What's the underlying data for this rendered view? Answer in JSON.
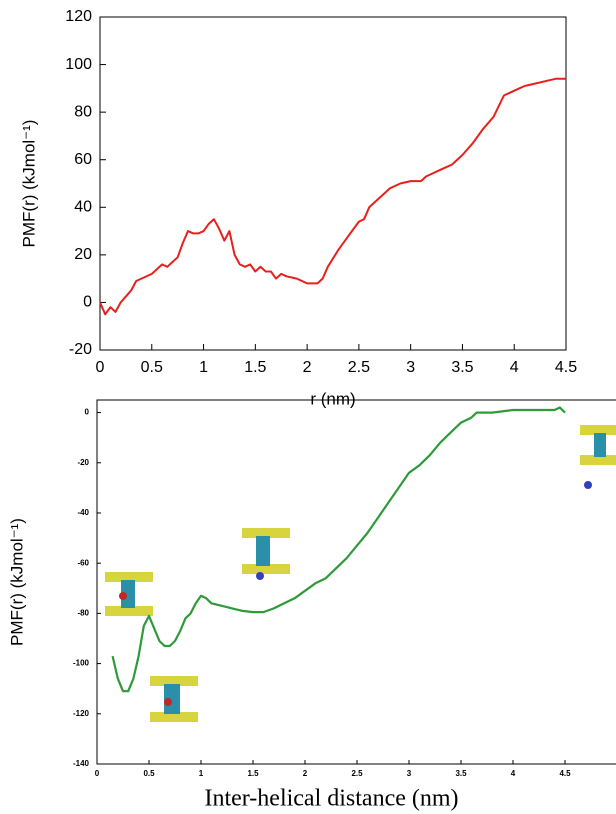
{
  "chart_data": [
    {
      "type": "line",
      "x_label": "r (nm)",
      "y_label": "PMF(r) (kJmol⁻¹)",
      "xlim": [
        0,
        4.5
      ],
      "ylim": [
        -20,
        120
      ],
      "xticks": [
        0,
        0.5,
        1,
        1.5,
        2,
        2.5,
        3,
        3.5,
        4,
        4.5
      ],
      "yticks": [
        -20,
        0,
        20,
        40,
        60,
        80,
        100,
        120
      ],
      "series": [
        {
          "color": "#e8201c",
          "x": [
            0,
            0.05,
            0.1,
            0.15,
            0.2,
            0.3,
            0.35,
            0.4,
            0.5,
            0.55,
            0.6,
            0.65,
            0.7,
            0.75,
            0.8,
            0.85,
            0.9,
            0.95,
            1.0,
            1.05,
            1.1,
            1.15,
            1.2,
            1.25,
            1.3,
            1.35,
            1.4,
            1.45,
            1.5,
            1.55,
            1.6,
            1.65,
            1.7,
            1.75,
            1.8,
            1.9,
            2.0,
            2.1,
            2.15,
            2.2,
            2.3,
            2.4,
            2.5,
            2.55,
            2.6,
            2.7,
            2.8,
            2.9,
            3.0,
            3.1,
            3.15,
            3.2,
            3.3,
            3.4,
            3.5,
            3.6,
            3.7,
            3.8,
            3.9,
            4.0,
            4.1,
            4.2,
            4.3,
            4.4,
            4.5
          ],
          "values": [
            0,
            -5,
            -2,
            -4,
            0,
            5,
            9,
            10,
            12,
            14,
            16,
            15,
            17,
            19,
            25,
            30,
            29,
            29,
            30,
            33,
            35,
            31,
            26,
            30,
            20,
            16,
            15,
            16,
            13,
            15,
            13,
            13,
            10,
            12,
            11,
            10,
            8,
            8,
            10,
            15,
            22,
            28,
            34,
            35,
            40,
            44,
            48,
            50,
            51,
            51,
            53,
            54,
            56,
            58,
            62,
            67,
            73,
            78,
            87,
            89,
            91,
            92,
            93,
            94,
            94
          ]
        }
      ]
    },
    {
      "type": "line",
      "x_label": "Inter-helical distance (nm)",
      "y_label": "PMF(r) (kJmol⁻¹)",
      "xlim": [
        0,
        5
      ],
      "ylim": [
        -140,
        5
      ],
      "xticks": [
        0,
        0.5,
        1,
        1.5,
        2,
        2.5,
        3,
        3.5,
        4,
        4.5
      ],
      "yticks": [
        -140,
        -120,
        -100,
        -80,
        -60,
        -40,
        -20,
        0
      ],
      "series": [
        {
          "color": "#2e9a3a",
          "x": [
            0.15,
            0.2,
            0.25,
            0.3,
            0.35,
            0.4,
            0.45,
            0.5,
            0.55,
            0.6,
            0.65,
            0.7,
            0.75,
            0.8,
            0.85,
            0.9,
            0.95,
            1.0,
            1.05,
            1.1,
            1.2,
            1.3,
            1.4,
            1.5,
            1.6,
            1.7,
            1.8,
            1.9,
            2.0,
            2.1,
            2.2,
            2.3,
            2.4,
            2.5,
            2.6,
            2.7,
            2.8,
            2.9,
            3.0,
            3.1,
            3.2,
            3.3,
            3.4,
            3.5,
            3.6,
            3.65,
            3.7,
            3.8,
            4.0,
            4.2,
            4.4,
            4.45,
            4.5
          ],
          "values": [
            -97,
            -106,
            -111,
            -111,
            -106,
            -97,
            -85,
            -81,
            -86,
            -91,
            -93,
            -93,
            -91,
            -87,
            -82,
            -80,
            -76,
            -73,
            -74,
            -76,
            -77,
            -78,
            -79,
            -79.5,
            -79.5,
            -78,
            -76,
            -74,
            -71,
            -68,
            -66,
            -62,
            -58,
            -53,
            -48,
            -42,
            -36,
            -30,
            -24,
            -21,
            -17,
            -12,
            -8,
            -4,
            -2,
            0,
            0,
            0,
            1,
            1,
            1,
            2,
            0
          ]
        }
      ]
    }
  ]
}
